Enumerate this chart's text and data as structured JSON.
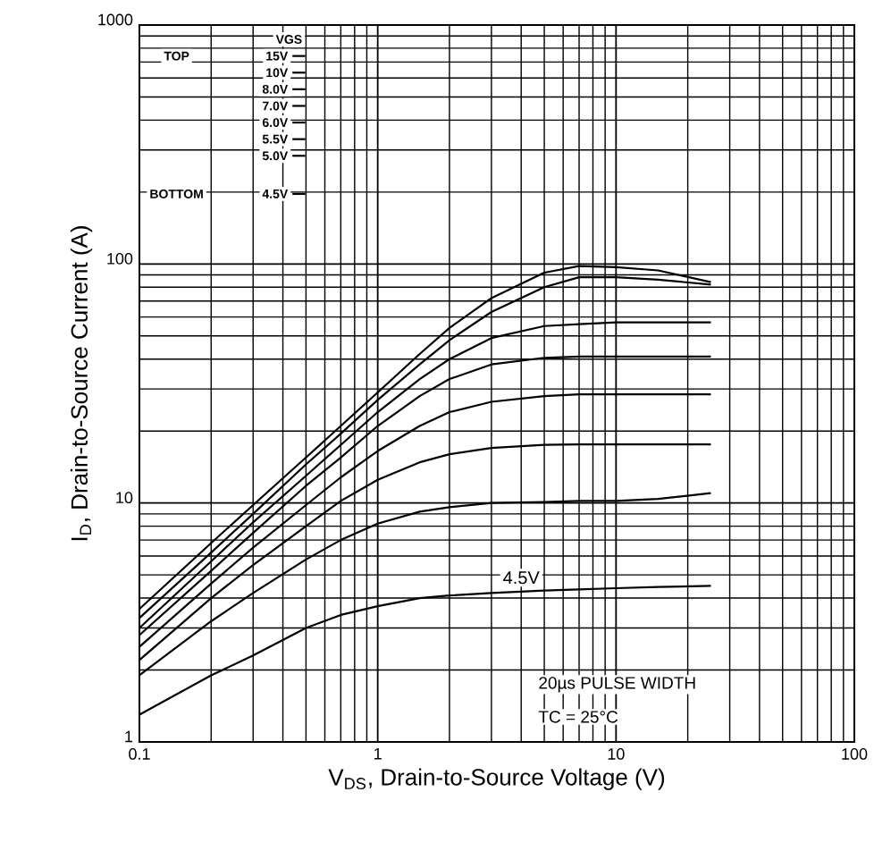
{
  "chart_data": {
    "type": "line",
    "xlabel": "V$_{DS}$, Drain-to-Source Voltage (V)",
    "ylabel": "I$_{D}$, Drain-to-Source Current (A)",
    "legend_title": "VGS",
    "legend": "top left",
    "log": "xy",
    "grid": true,
    "line_style": "solid",
    "xlim": [
      0.1,
      100
    ],
    "ylim": [
      1,
      1000
    ],
    "xticks": [
      0.1,
      1,
      10,
      100
    ],
    "yticks": [
      1,
      10,
      100,
      1000
    ],
    "x": [
      0.1,
      0.2,
      0.3,
      0.5,
      0.7,
      1,
      1.5,
      2,
      3,
      5,
      7,
      10,
      15,
      25
    ],
    "series": [
      {
        "name": "15V",
        "color": "#000000",
        "values": [
          3.6,
          6.8,
          9.8,
          15.5,
          21,
          29,
          42,
          54,
          72,
          92,
          98,
          97,
          94,
          84
        ]
      },
      {
        "name": "10V",
        "color": "#000000",
        "values": [
          3.3,
          6.2,
          9.0,
          14.5,
          19.5,
          27,
          38,
          48,
          63,
          80,
          88,
          88,
          86,
          82
        ]
      },
      {
        "name": "8.0V",
        "color": "#000000",
        "values": [
          3.0,
          5.7,
          8.3,
          13,
          17.5,
          24,
          33,
          40,
          49,
          55,
          56,
          57,
          57,
          57
        ]
      },
      {
        "name": "7.0V",
        "color": "#000000",
        "values": [
          2.8,
          5.2,
          7.5,
          11.8,
          15.5,
          21,
          28,
          33,
          38,
          40.5,
          41,
          41,
          41,
          41
        ]
      },
      {
        "name": "6.0V",
        "color": "#000000",
        "values": [
          2.5,
          4.6,
          6.5,
          9.8,
          12.8,
          16.5,
          21,
          24,
          26.5,
          28,
          28.5,
          28.5,
          28.5,
          28.5
        ]
      },
      {
        "name": "5.5V",
        "color": "#000000",
        "values": [
          2.2,
          4.0,
          5.5,
          8.0,
          10.2,
          12.5,
          14.8,
          16,
          17,
          17.5,
          17.6,
          17.6,
          17.6,
          17.6
        ]
      },
      {
        "name": "5.0V",
        "color": "#000000",
        "values": [
          1.9,
          3.2,
          4.2,
          5.8,
          7.0,
          8.2,
          9.2,
          9.6,
          10.0,
          10.1,
          10.2,
          10.2,
          10.4,
          11
        ]
      },
      {
        "name": "4.5V",
        "color": "#000000",
        "values": [
          1.3,
          1.9,
          2.3,
          3.0,
          3.4,
          3.7,
          4.0,
          4.1,
          4.2,
          4.3,
          4.35,
          4.4,
          4.45,
          4.5
        ]
      }
    ],
    "annotations": [
      "TOP",
      "BOTTOM",
      "20µs PULSE WIDTH",
      "TC = 25°C",
      {
        "text": "4.5V",
        "x": 4,
        "y": 4.3
      }
    ]
  }
}
